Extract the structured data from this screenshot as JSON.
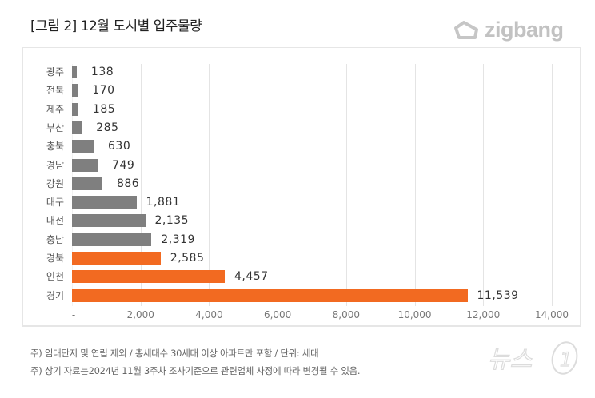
{
  "header": {
    "title": "[그림 2] 12월 도시별 입주물량",
    "brand": "zigbang"
  },
  "colors": {
    "gray_bar": "#7f7f7f",
    "orange_bar": "#f26a21"
  },
  "chart_data": {
    "type": "bar",
    "orientation": "horizontal",
    "title": "[그림 2] 12월 도시별 입주물량",
    "xlabel": "",
    "ylabel": "",
    "categories": [
      "광주",
      "전북",
      "제주",
      "부산",
      "충북",
      "경남",
      "강원",
      "대구",
      "대전",
      "충남",
      "경북",
      "인천",
      "경기"
    ],
    "values": [
      138,
      170,
      185,
      285,
      630,
      749,
      886,
      1881,
      2135,
      2319,
      2585,
      4457,
      11539
    ],
    "value_labels": [
      "138",
      "170",
      "185",
      "285",
      "630",
      "749",
      "886",
      "1,881",
      "2,135",
      "2,319",
      "2,585",
      "4,457",
      "11,539"
    ],
    "highlight": [
      "경북",
      "인천",
      "경기"
    ],
    "xlim": [
      0,
      14000
    ],
    "xticks": [
      "-",
      "2,000",
      "4,000",
      "6,000",
      "8,000",
      "10,000",
      "12,000",
      "14,000"
    ],
    "grid": true,
    "legend": null
  },
  "notes": [
    "주) 임대단지 및 연립 제외 / 총세대수 30세대 이상 아파트만 포함 / 단위: 세대",
    "주) 상기 자료는2024년 11월 3주차 조사기준으로 관련업체 사정에 따라 변경될 수 있음."
  ],
  "watermark": "뉴스1"
}
